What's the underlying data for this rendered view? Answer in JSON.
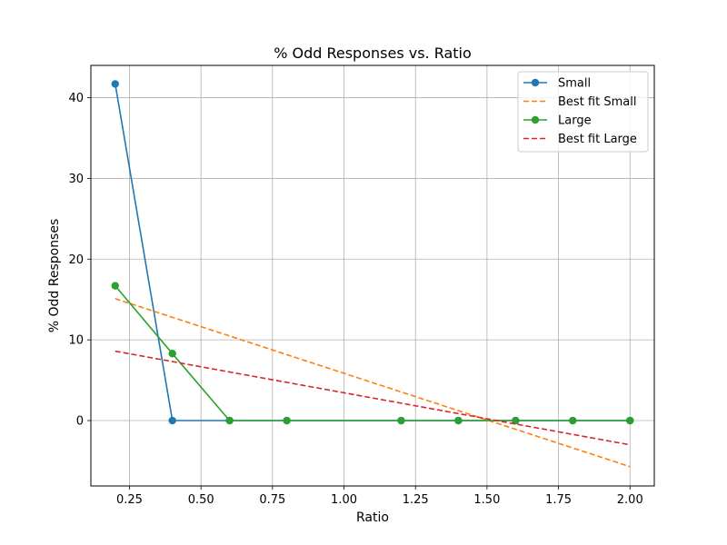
{
  "chart_data": {
    "type": "line",
    "title": "% Odd Responses vs. Ratio",
    "xlabel": "Ratio",
    "ylabel": "% Odd Responses",
    "xlim": [
      0.115,
      2.085
    ],
    "ylim": [
      -8.1,
      44.0
    ],
    "xticks": [
      0.25,
      0.5,
      0.75,
      1.0,
      1.25,
      1.5,
      1.75,
      2.0
    ],
    "xtick_labels": [
      "0.25",
      "0.50",
      "0.75",
      "1.00",
      "1.25",
      "1.50",
      "1.75",
      "2.00"
    ],
    "yticks": [
      0,
      10,
      20,
      30,
      40
    ],
    "ytick_labels": [
      "0",
      "10",
      "20",
      "30",
      "40"
    ],
    "grid": true,
    "legend_position": "top-right",
    "series": [
      {
        "name": "Small",
        "style": "solid-marker",
        "color": "#1f77b4",
        "x": [
          0.2,
          0.4,
          0.6,
          0.8,
          1.2,
          1.4,
          1.6,
          1.8,
          2.0
        ],
        "y": [
          41.7,
          0,
          0,
          0,
          0,
          0,
          0,
          0,
          0
        ]
      },
      {
        "name": "Best fit Small",
        "style": "dashed",
        "color": "#ff7f0e",
        "x": [
          0.2,
          2.0
        ],
        "y": [
          15.1,
          -5.7
        ]
      },
      {
        "name": "Large",
        "style": "solid-marker",
        "color": "#2ca02c",
        "x": [
          0.2,
          0.4,
          0.6,
          0.8,
          1.2,
          1.4,
          1.6,
          1.8,
          2.0
        ],
        "y": [
          16.7,
          8.3,
          0,
          0,
          0,
          0,
          0,
          0,
          0
        ]
      },
      {
        "name": "Best fit Large",
        "style": "dashed",
        "color": "#d62728",
        "x": [
          0.2,
          2.0
        ],
        "y": [
          8.6,
          -3.0
        ]
      }
    ]
  }
}
